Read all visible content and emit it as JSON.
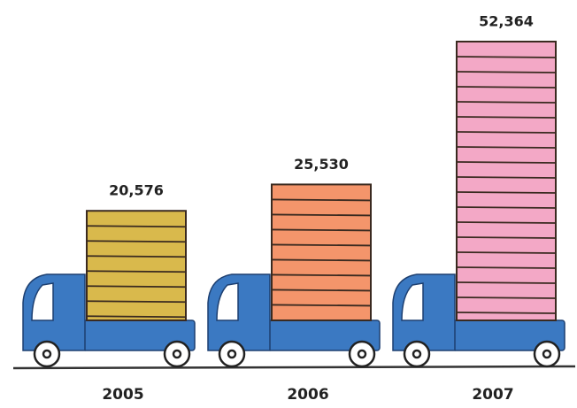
{
  "chart_data": {
    "type": "bar",
    "categories": [
      "2005",
      "2006",
      "2007"
    ],
    "values": [
      20576,
      25530,
      52364
    ],
    "value_labels": [
      "20,576",
      "25,530",
      "52,364"
    ],
    "colors": [
      "#d9b94c",
      "#f4956b",
      "#f3a8c6"
    ]
  }
}
